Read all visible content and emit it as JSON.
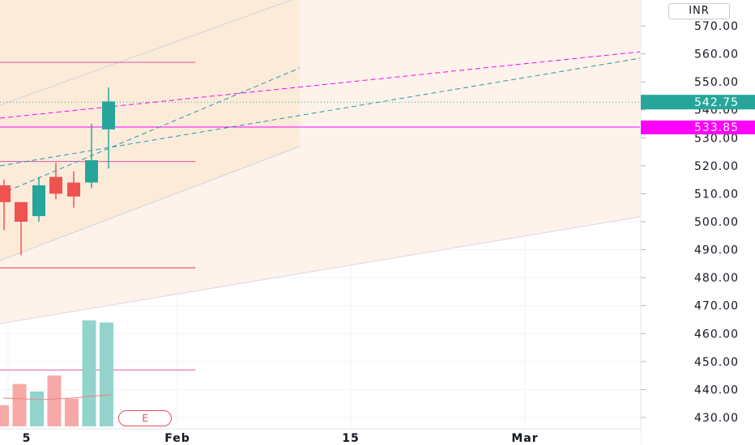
{
  "currency_label": "INR",
  "earnings_label": "E",
  "colors": {
    "up": "#26a69a",
    "down": "#ef5350",
    "vol_up": "#92d4cc",
    "vol_down": "#f7a9a7",
    "magenta": "#ff00ff",
    "fib_fill": "#fde9d6",
    "channel_fill": "#fef3ea"
  },
  "chart_data": {
    "type": "candlestick",
    "ylim": [
      425,
      575
    ],
    "y_ticks": [
      "570.00",
      "560.00",
      "550.00",
      "540.00",
      "530.00",
      "520.00",
      "510.00",
      "500.00",
      "490.00",
      "480.00",
      "470.00",
      "460.00",
      "450.00",
      "440.00",
      "430.00"
    ],
    "x_ticks": [
      "5",
      "Feb",
      "15",
      "Mar"
    ],
    "candles": [
      {
        "open": 513,
        "high": 515,
        "low": 497,
        "close": 507
      },
      {
        "open": 507,
        "high": 507,
        "low": 488,
        "close": 500
      },
      {
        "open": 502,
        "high": 516,
        "low": 500,
        "close": 513
      },
      {
        "open": 516,
        "high": 521,
        "low": 508,
        "close": 510
      },
      {
        "open": 514,
        "high": 518,
        "low": 505,
        "close": 509
      },
      {
        "open": 514,
        "high": 535,
        "low": 512,
        "close": 522
      },
      {
        "open": 533,
        "high": 548,
        "low": 519,
        "close": 543
      }
    ],
    "volume_up": [
      false,
      false,
      true,
      false,
      false,
      true,
      true
    ],
    "volume_relative": [
      0.2,
      0.4,
      0.33,
      0.48,
      0.26,
      1.0,
      0.98
    ],
    "last_price": "542.75",
    "line_price": "533.85",
    "levels": [
      557,
      521.5,
      483.5,
      447
    ]
  }
}
